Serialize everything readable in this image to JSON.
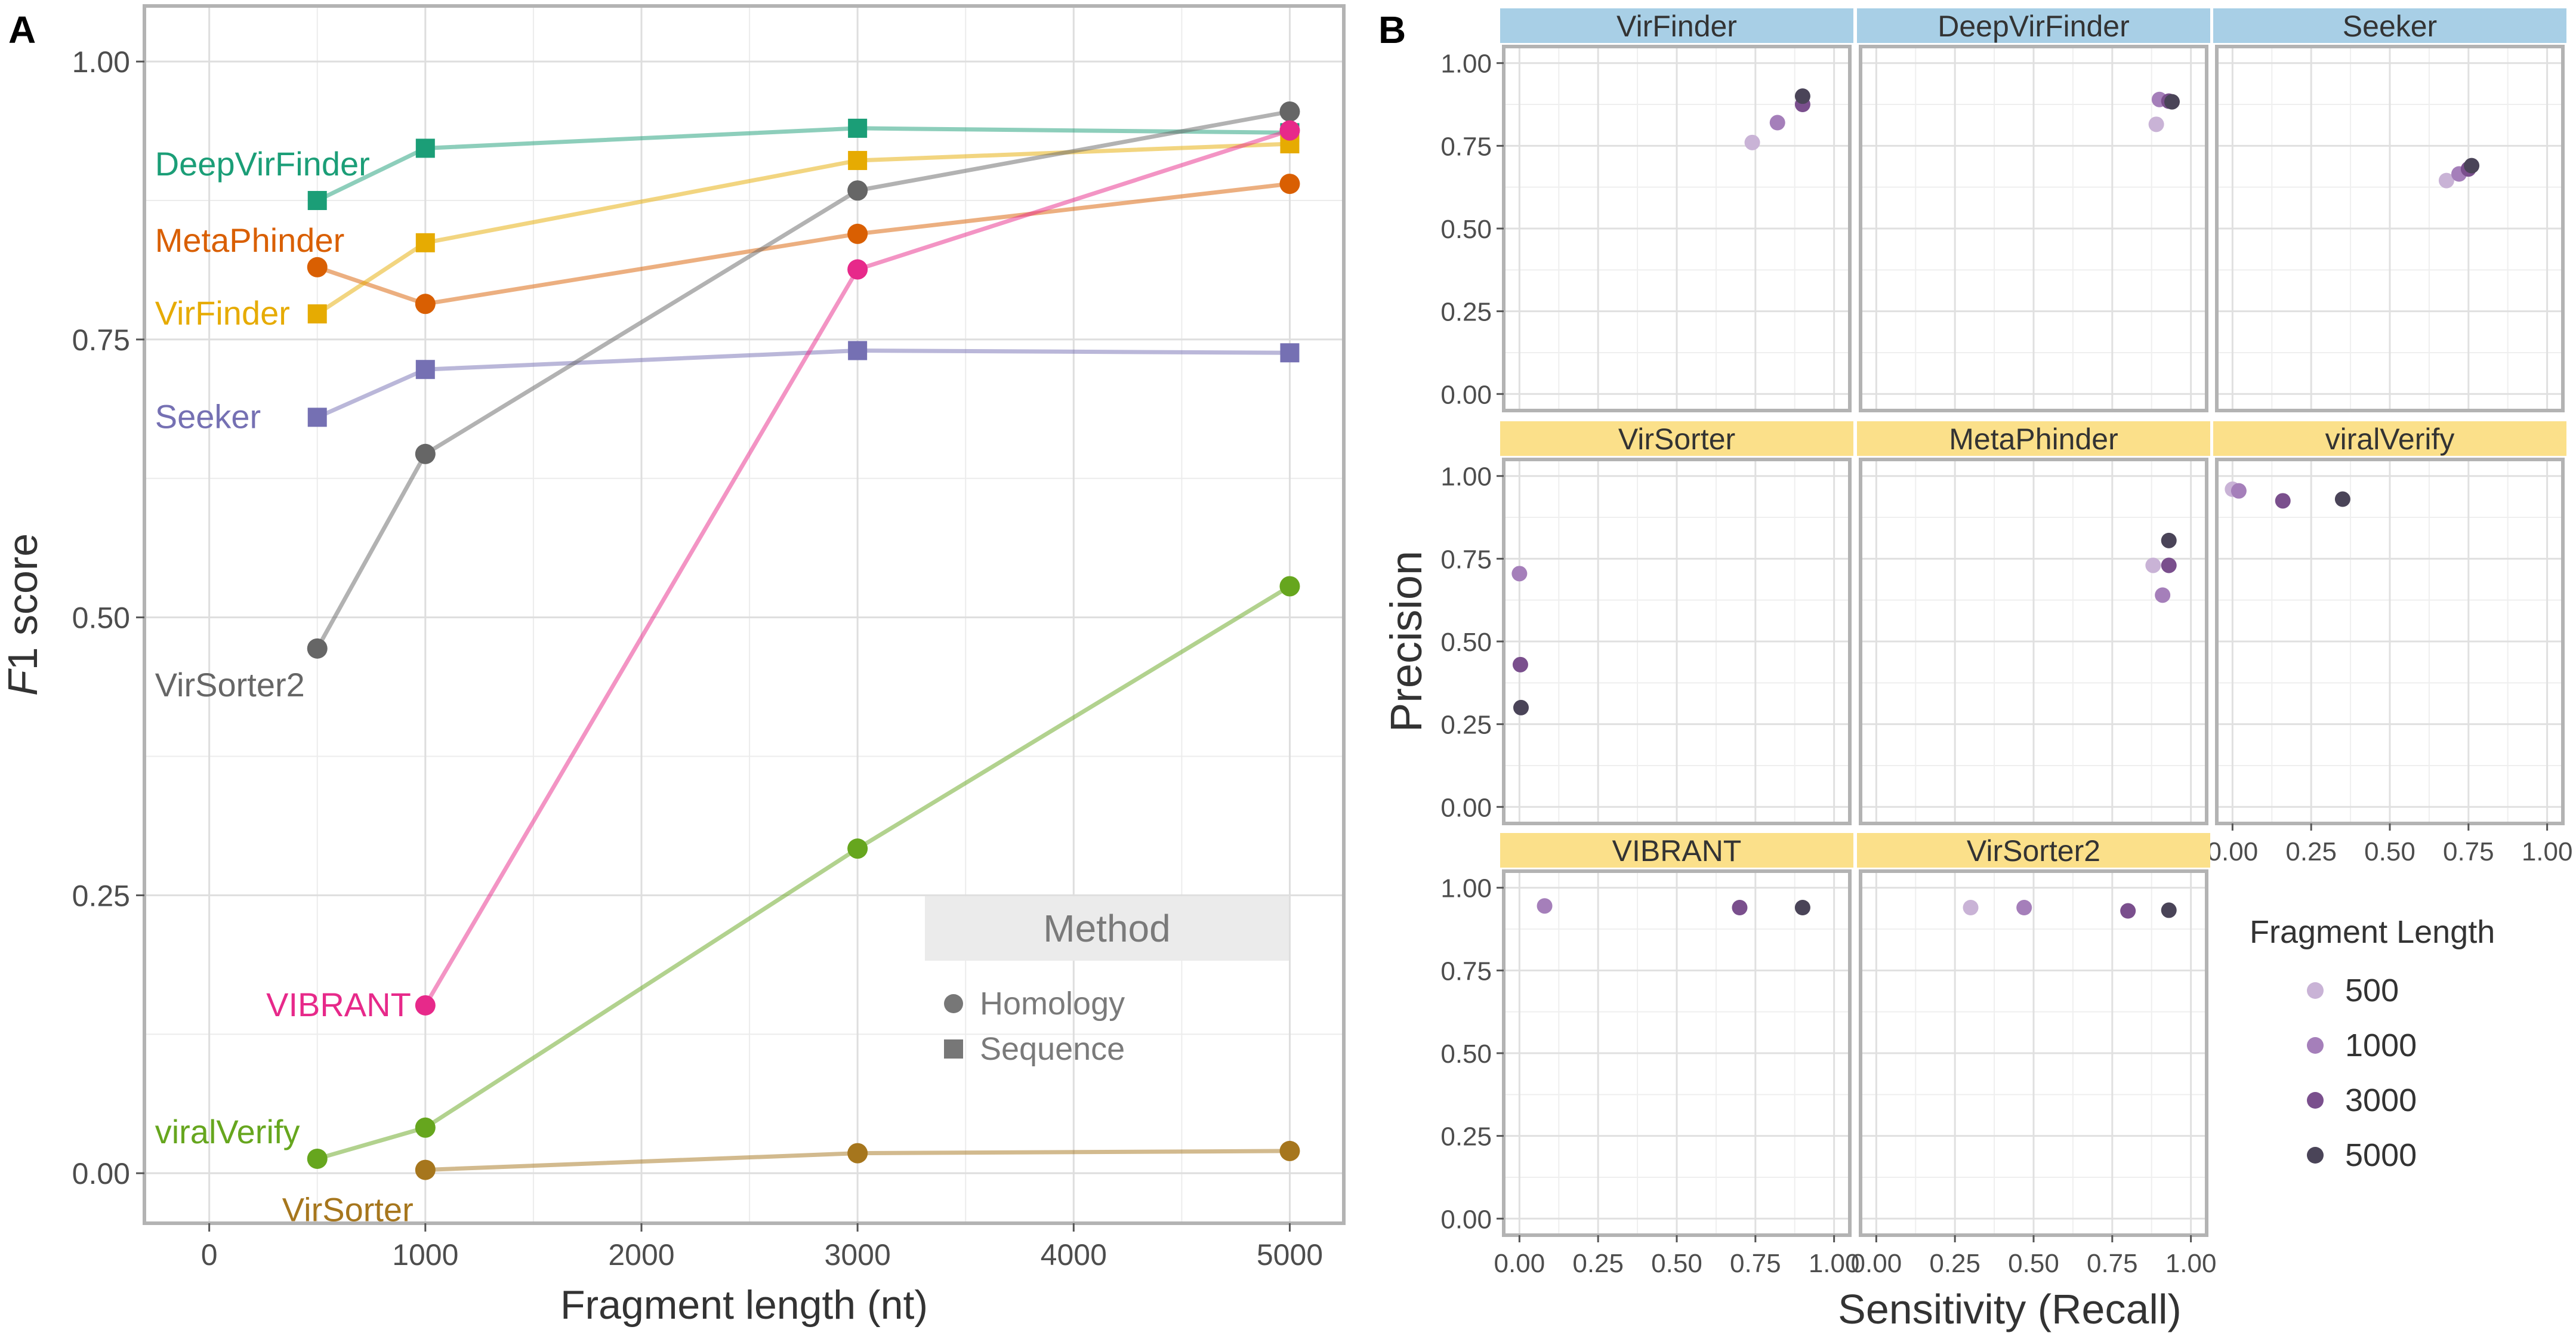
{
  "panel_labels": {
    "a": "A",
    "b": "B"
  },
  "chart_data": [
    {
      "type": "line",
      "panel": "A",
      "xlabel": "Fragment length (nt)",
      "ylabel_italic": "F",
      "ylabel_rest": "1 score",
      "xlim": [
        -300,
        5250
      ],
      "ylim": [
        -0.045,
        1.05
      ],
      "xticks": [
        0,
        1000,
        2000,
        3000,
        4000,
        5000
      ],
      "xtick_labels": [
        "0",
        "1000",
        "2000",
        "3000",
        "4000",
        "5000"
      ],
      "yticks": [
        0.0,
        0.25,
        0.5,
        0.75,
        1.0
      ],
      "ytick_labels": [
        "0.00",
        "0.25",
        "0.50",
        "0.75",
        "1.00"
      ],
      "x": [
        500,
        1000,
        3000,
        5000
      ],
      "legend": {
        "title": "Method",
        "entries": [
          {
            "label": "Homology",
            "shape": "circle"
          },
          {
            "label": "Sequence",
            "shape": "square"
          }
        ]
      },
      "series": [
        {
          "name": "DeepVirFinder",
          "method": "Sequence",
          "color": "#1b9e77",
          "values": [
            0.875,
            0.922,
            0.94,
            0.936
          ]
        },
        {
          "name": "MetaPhinder",
          "method": "Homology",
          "color": "#d95f02",
          "values": [
            0.815,
            0.782,
            0.845,
            0.89
          ]
        },
        {
          "name": "VirFinder",
          "method": "Sequence",
          "color": "#e6ab02",
          "values": [
            0.773,
            0.837,
            0.911,
            0.926
          ]
        },
        {
          "name": "Seeker",
          "method": "Sequence",
          "color": "#7570b3",
          "values": [
            0.68,
            0.723,
            0.74,
            0.738
          ]
        },
        {
          "name": "VirSorter2",
          "method": "Homology",
          "color": "#666666",
          "values": [
            0.472,
            0.647,
            0.884,
            0.955
          ]
        },
        {
          "name": "VIBRANT",
          "method": "Homology",
          "color": "#e7298a",
          "values": [
            null,
            0.151,
            0.813,
            0.938
          ]
        },
        {
          "name": "viralVerify",
          "method": "Homology",
          "color": "#66a61e",
          "values": [
            0.013,
            0.041,
            0.292,
            0.528
          ]
        },
        {
          "name": "VirSorter",
          "method": "Homology",
          "color": "#a6761d",
          "values": [
            null,
            0.003,
            0.018,
            0.02
          ]
        }
      ]
    },
    {
      "type": "scatter",
      "panel": "B",
      "xlabel": "Sensitivity (Recall)",
      "ylabel": "Precision",
      "xlim": [
        -0.05,
        1.05
      ],
      "ylim": [
        -0.05,
        1.05
      ],
      "xticks": [
        0,
        0.25,
        0.5,
        0.75,
        1.0
      ],
      "xtick_labels": [
        "0.00",
        "0.25",
        "0.50",
        "0.75",
        "1.00"
      ],
      "yticks": [
        0,
        0.25,
        0.5,
        0.75,
        1.0
      ],
      "ytick_labels": [
        "0.00",
        "0.25",
        "0.50",
        "0.75",
        "1.00"
      ],
      "legend": {
        "title": "Fragment Length",
        "entries": [
          {
            "label": "500",
            "color": "#c9b3d6"
          },
          {
            "label": "1000",
            "color": "#a57fba"
          },
          {
            "label": "3000",
            "color": "#7a4f8d"
          },
          {
            "label": "5000",
            "color": "#4a4458"
          }
        ]
      },
      "strip_colors": {
        "Sequence": "#a8cfe6",
        "Homology": "#fbe08a"
      },
      "facets": [
        {
          "name": "VirFinder",
          "strip": "Sequence",
          "points": [
            {
              "len": "500",
              "x": 0.74,
              "y": 0.76
            },
            {
              "len": "1000",
              "x": 0.82,
              "y": 0.82
            },
            {
              "len": "3000",
              "x": 0.9,
              "y": 0.875
            },
            {
              "len": "5000",
              "x": 0.9,
              "y": 0.9
            }
          ]
        },
        {
          "name": "DeepVirFinder",
          "strip": "Sequence",
          "points": [
            {
              "len": "500",
              "x": 0.89,
              "y": 0.815
            },
            {
              "len": "1000",
              "x": 0.9,
              "y": 0.89
            },
            {
              "len": "3000",
              "x": 0.93,
              "y": 0.885
            },
            {
              "len": "5000",
              "x": 0.94,
              "y": 0.883
            }
          ]
        },
        {
          "name": "Seeker",
          "strip": "Sequence",
          "points": [
            {
              "len": "500",
              "x": 0.68,
              "y": 0.645
            },
            {
              "len": "1000",
              "x": 0.72,
              "y": 0.665
            },
            {
              "len": "3000",
              "x": 0.75,
              "y": 0.68
            },
            {
              "len": "5000",
              "x": 0.76,
              "y": 0.69
            }
          ]
        },
        {
          "name": "VirSorter",
          "strip": "Homology",
          "points": [
            {
              "len": "1000",
              "x": 0.0,
              "y": 0.705
            },
            {
              "len": "3000",
              "x": 0.003,
              "y": 0.43
            },
            {
              "len": "5000",
              "x": 0.005,
              "y": 0.3
            }
          ]
        },
        {
          "name": "MetaPhinder",
          "strip": "Homology",
          "points": [
            {
              "len": "500",
              "x": 0.88,
              "y": 0.73
            },
            {
              "len": "1000",
              "x": 0.91,
              "y": 0.64
            },
            {
              "len": "3000",
              "x": 0.93,
              "y": 0.73
            },
            {
              "len": "5000",
              "x": 0.93,
              "y": 0.805
            }
          ]
        },
        {
          "name": "viralVerify",
          "strip": "Homology",
          "points": [
            {
              "len": "500",
              "x": 0.0,
              "y": 0.96
            },
            {
              "len": "1000",
              "x": 0.02,
              "y": 0.955
            },
            {
              "len": "3000",
              "x": 0.16,
              "y": 0.925
            },
            {
              "len": "5000",
              "x": 0.35,
              "y": 0.93
            }
          ]
        },
        {
          "name": "VIBRANT",
          "strip": "Homology",
          "points": [
            {
              "len": "1000",
              "x": 0.08,
              "y": 0.945
            },
            {
              "len": "3000",
              "x": 0.7,
              "y": 0.94
            },
            {
              "len": "5000",
              "x": 0.9,
              "y": 0.94
            }
          ]
        },
        {
          "name": "VirSorter2",
          "strip": "Homology",
          "points": [
            {
              "len": "500",
              "x": 0.3,
              "y": 0.94
            },
            {
              "len": "1000",
              "x": 0.47,
              "y": 0.94
            },
            {
              "len": "3000",
              "x": 0.8,
              "y": 0.93
            },
            {
              "len": "5000",
              "x": 0.93,
              "y": 0.932
            }
          ]
        }
      ]
    }
  ]
}
